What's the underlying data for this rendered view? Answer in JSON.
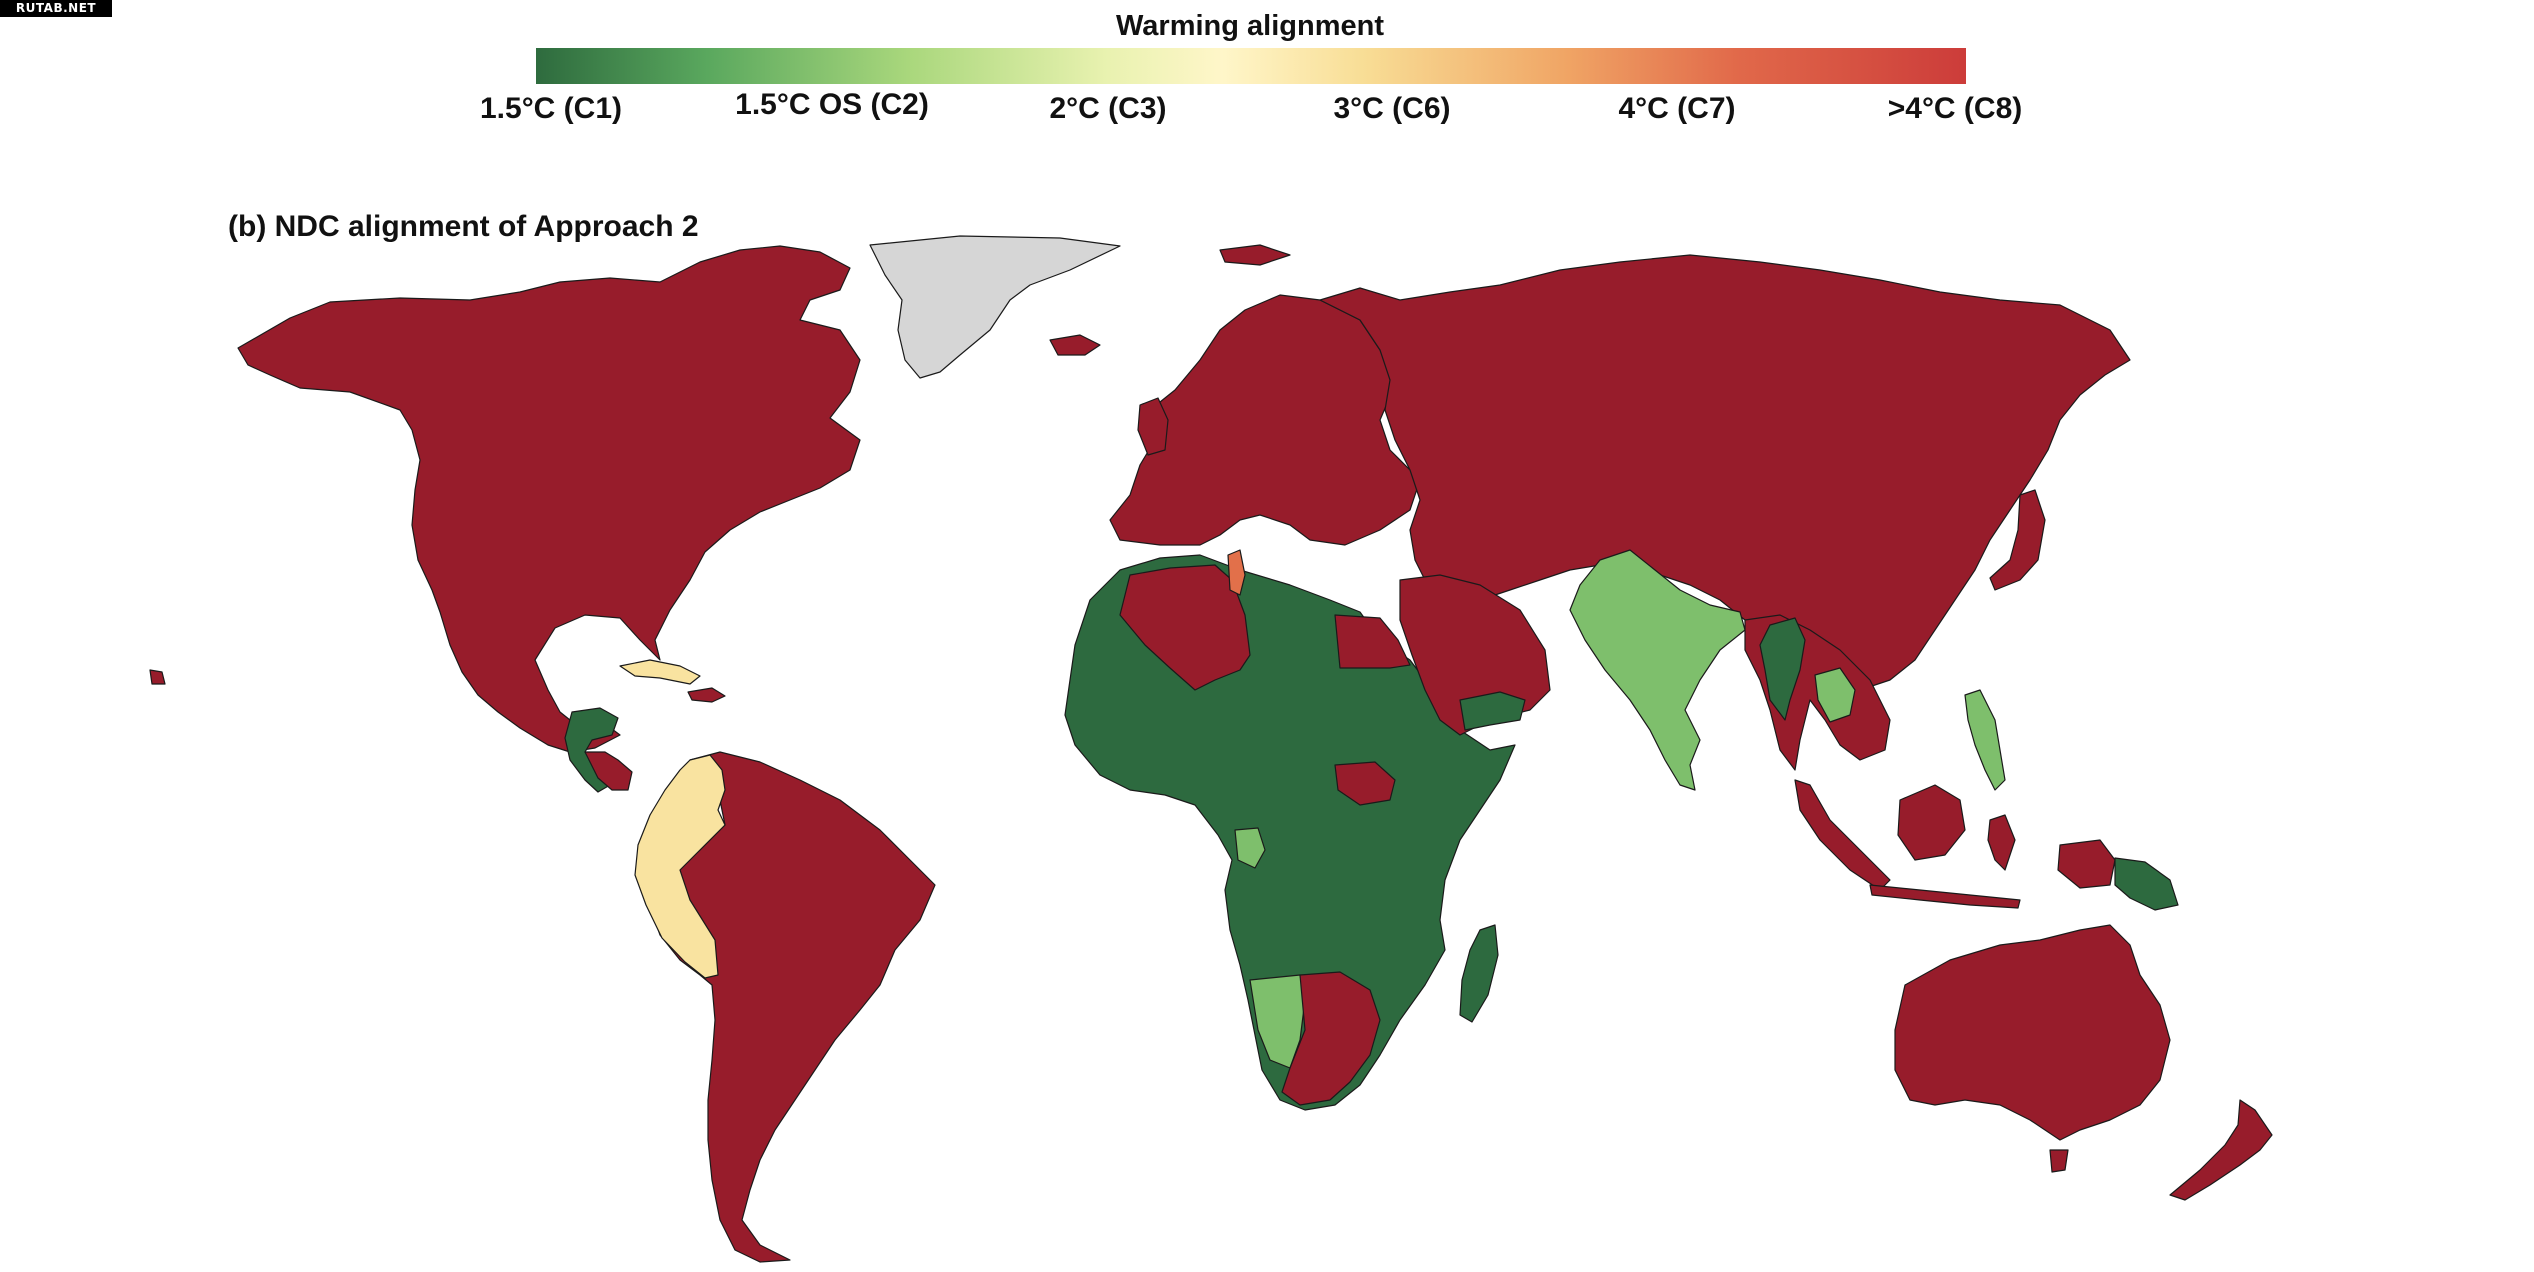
{
  "watermark": "RUTAB.NET",
  "legend": {
    "title": "Warming alignment",
    "labels": [
      "1.5°C (C1)",
      "1.5°C OS (C2)",
      "2°C (C3)",
      "3°C (C6)",
      "4°C (C7)",
      ">4°C (C8)"
    ]
  },
  "panel_title": "(b) NDC alignment of Approach 2",
  "colors": {
    "c1": "#2d6a3f",
    "c2": "#7ebf6c",
    "c3": "#f9e3a0",
    "c7": "#e2704a",
    "c8": "#971c2b",
    "no_data": "#d6d6d6"
  },
  "regions": [
    {
      "name": "north-america",
      "category": "c8"
    },
    {
      "name": "greenland",
      "category": "no_data"
    },
    {
      "name": "central-america",
      "category": "c1"
    },
    {
      "name": "cuba",
      "category": "c3"
    },
    {
      "name": "colombia-ecuador-peru",
      "category": "c3"
    },
    {
      "name": "south-america",
      "category": "c8"
    },
    {
      "name": "europe",
      "category": "c8"
    },
    {
      "name": "russia-china-asia",
      "category": "c8"
    },
    {
      "name": "india",
      "category": "c2"
    },
    {
      "name": "southeast-asia",
      "category": "c8"
    },
    {
      "name": "philippines",
      "category": "c2"
    },
    {
      "name": "africa",
      "category": "c1"
    },
    {
      "name": "algeria-egypt",
      "category": "c8"
    },
    {
      "name": "tunisia",
      "category": "c7"
    },
    {
      "name": "namibia",
      "category": "c2"
    },
    {
      "name": "south-africa",
      "category": "c8"
    },
    {
      "name": "madagascar",
      "category": "c1"
    },
    {
      "name": "australia",
      "category": "c8"
    },
    {
      "name": "new-zealand",
      "category": "c8"
    },
    {
      "name": "indonesia",
      "category": "c8"
    },
    {
      "name": "papua-new-guinea",
      "category": "c1"
    }
  ]
}
